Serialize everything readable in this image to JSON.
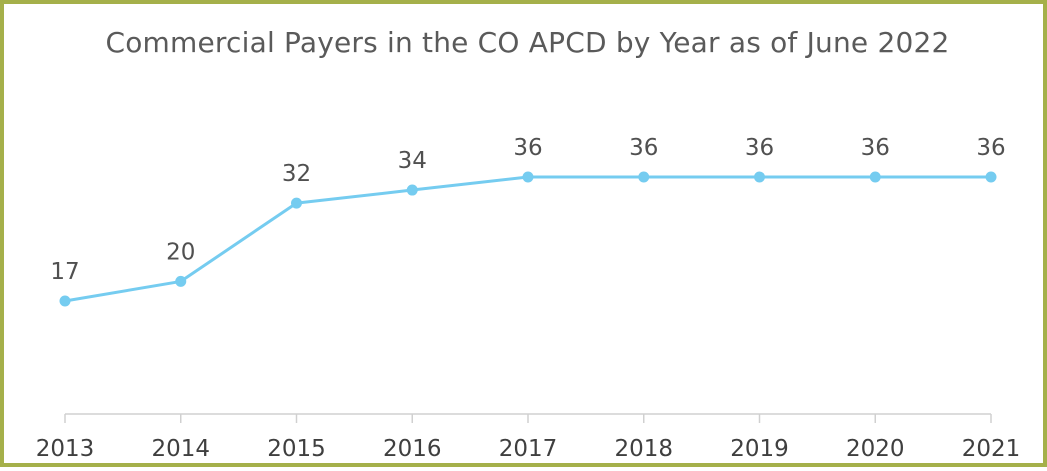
{
  "chart_data": {
    "type": "line",
    "title": "Commercial Payers in the CO APCD by Year as of June 2022",
    "xlabel": "",
    "ylabel": "",
    "categories": [
      "2013",
      "2014",
      "2015",
      "2016",
      "2017",
      "2018",
      "2019",
      "2020",
      "2021"
    ],
    "series": [
      {
        "values": [
          17,
          20,
          32,
          34,
          36,
          36,
          36,
          36,
          36
        ],
        "color": "#75ccf0"
      }
    ],
    "data_labels": [
      "17",
      "20",
      "32",
      "34",
      "36",
      "36",
      "36",
      "36",
      "36"
    ],
    "y_axis_visible": false,
    "grid": false,
    "legend": "none",
    "colors": {
      "line": "#75ccf0",
      "axis": "#d0d0d0",
      "border": "#a5b04a",
      "title_text": "#5a5a5a"
    }
  }
}
